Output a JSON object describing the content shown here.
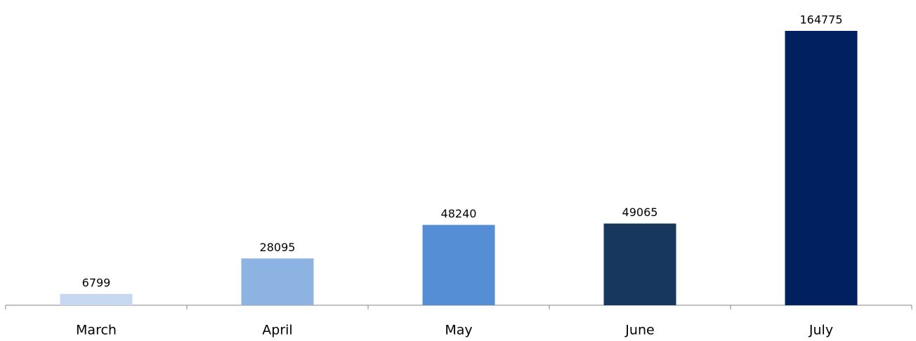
{
  "chart_data": {
    "type": "bar",
    "categories": [
      "March",
      "April",
      "May",
      "June",
      "July"
    ],
    "values": [
      6799,
      28095,
      48240,
      49065,
      164775
    ],
    "colors": [
      "#c6d9f1",
      "#8db3e2",
      "#558ed5",
      "#17375e",
      "#002060"
    ]
  }
}
